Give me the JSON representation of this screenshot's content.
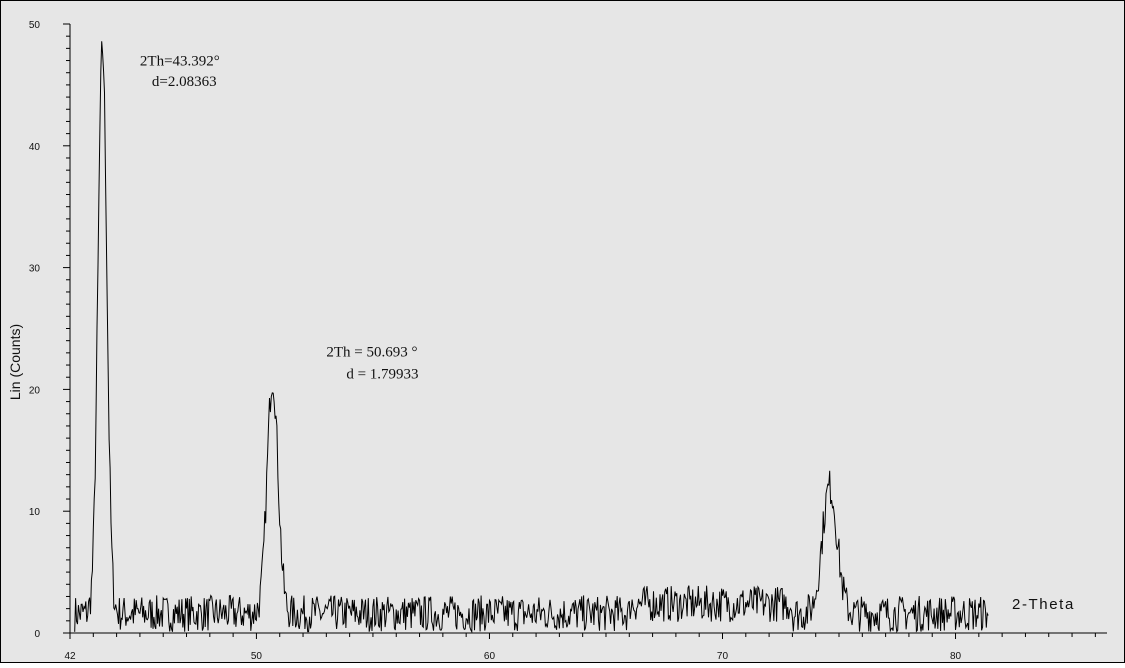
{
  "chart_data": {
    "type": "line",
    "title": "",
    "xlabel": "2-Theta",
    "ylabel": "Lin (Counts)",
    "xlim": [
      42,
      86.5
    ],
    "ylim": [
      0,
      50
    ],
    "x_ticks": [
      {
        "value": 42,
        "label": "42"
      },
      {
        "value": 50,
        "label": "50"
      },
      {
        "value": 60,
        "label": "60"
      },
      {
        "value": 70,
        "label": "70"
      },
      {
        "value": 80,
        "label": "80"
      }
    ],
    "y_ticks": [
      {
        "value": 0,
        "label": "0"
      },
      {
        "value": 10,
        "label": "10"
      },
      {
        "value": 20,
        "label": "20"
      },
      {
        "value": 30,
        "label": "30"
      },
      {
        "value": 40,
        "label": "40"
      },
      {
        "value": 50,
        "label": "50"
      }
    ],
    "x_range_data": [
      42.2,
      81.4
    ],
    "baseline_counts": 1.6,
    "noise_counts": 1.5,
    "peaks": [
      {
        "two_theta": 43.392,
        "height": 48.0,
        "fwhm": 0.45
      },
      {
        "two_theta": 50.693,
        "height": 21.0,
        "fwhm": 0.55
      },
      {
        "two_theta": 74.6,
        "height": 12.0,
        "fwhm": 0.75
      }
    ],
    "annotations": [
      {
        "line1": "2Th=43.392°",
        "line2": "d=2.08363",
        "x": 45.0,
        "y1": 46.6,
        "y2": 44.9
      },
      {
        "line1": "2Th = 50.693 °",
        "line2": "d = 1.79933",
        "x": 53.0,
        "y1": 22.7,
        "y2": 20.9
      }
    ],
    "grid": false,
    "background_color": "#e6e6e6",
    "line_color": "#000000"
  }
}
